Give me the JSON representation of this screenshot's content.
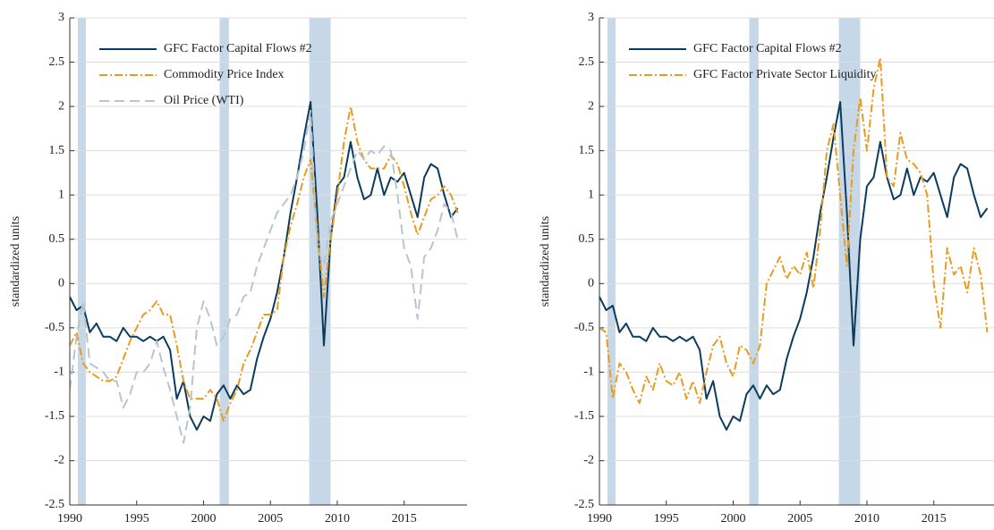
{
  "chart_data": [
    {
      "type": "line",
      "ylabel": "standardized units",
      "x": [
        1990,
        1990.5,
        1991,
        1991.5,
        1992,
        1992.5,
        1993,
        1993.5,
        1994,
        1994.5,
        1995,
        1995.5,
        1996,
        1996.5,
        1997,
        1997.5,
        1998,
        1998.5,
        1999,
        1999.5,
        2000,
        2000.5,
        2001,
        2001.5,
        2002,
        2002.5,
        2003,
        2003.5,
        2004,
        2004.5,
        2005,
        2005.5,
        2006,
        2006.5,
        2007,
        2007.5,
        2008,
        2008.5,
        2009,
        2009.5,
        2010,
        2010.5,
        2011,
        2011.5,
        2012,
        2012.5,
        2013,
        2013.5,
        2014,
        2014.5,
        2015,
        2015.5,
        2016,
        2016.5,
        2017,
        2017.5,
        2018,
        2018.5,
        2019
      ],
      "series": [
        {
          "name": "GFC Factor Capital Flows #2",
          "color": "#0b3c5d",
          "dash": "none",
          "values": [
            -0.15,
            -0.3,
            -0.25,
            -0.55,
            -0.45,
            -0.6,
            -0.6,
            -0.65,
            -0.5,
            -0.6,
            -0.6,
            -0.65,
            -0.6,
            -0.65,
            -0.6,
            -0.75,
            -1.3,
            -1.1,
            -1.5,
            -1.65,
            -1.5,
            -1.55,
            -1.25,
            -1.15,
            -1.3,
            -1.15,
            -1.25,
            -1.2,
            -0.85,
            -0.6,
            -0.4,
            -0.1,
            0.3,
            0.8,
            1.2,
            1.65,
            2.05,
            0.8,
            -0.7,
            0.5,
            1.1,
            1.2,
            1.6,
            1.2,
            0.95,
            1.0,
            1.3,
            1.0,
            1.2,
            1.15,
            1.25,
            1.0,
            0.75,
            1.2,
            1.35,
            1.3,
            1.0,
            0.75,
            0.85
          ]
        },
        {
          "name": "Commodity Price Index",
          "color": "#e89c1f",
          "dash": "9 3 2 3",
          "values": [
            -0.7,
            -0.55,
            -0.9,
            -1.0,
            -1.05,
            -1.1,
            -1.1,
            -1.05,
            -0.85,
            -0.65,
            -0.5,
            -0.35,
            -0.3,
            -0.2,
            -0.35,
            -0.35,
            -0.7,
            -1.1,
            -1.3,
            -1.3,
            -1.3,
            -1.2,
            -1.3,
            -1.55,
            -1.35,
            -1.2,
            -0.9,
            -0.75,
            -0.55,
            -0.35,
            -0.35,
            -0.3,
            0.3,
            0.65,
            0.9,
            1.2,
            1.4,
            0.6,
            -0.15,
            0.5,
            1.0,
            1.6,
            2.0,
            1.6,
            1.4,
            1.3,
            1.3,
            1.3,
            1.45,
            1.35,
            1.1,
            0.8,
            0.55,
            0.75,
            0.95,
            1.0,
            1.1,
            1.0,
            0.8
          ]
        },
        {
          "name": "Oil Price (WTI)",
          "color": "#b8c4d0",
          "dash": "11 6",
          "values": [
            -1.2,
            -0.6,
            -0.2,
            -0.9,
            -0.95,
            -1.0,
            -1.1,
            -1.1,
            -1.4,
            -1.25,
            -1.0,
            -1.0,
            -0.9,
            -0.65,
            -0.95,
            -1.2,
            -1.5,
            -1.8,
            -1.4,
            -0.5,
            -0.2,
            -0.4,
            -0.7,
            -0.6,
            -0.4,
            -0.35,
            -0.15,
            -0.1,
            0.2,
            0.4,
            0.6,
            0.8,
            0.9,
            1.0,
            1.2,
            1.5,
            1.95,
            0.4,
            0.2,
            0.7,
            0.9,
            1.1,
            1.3,
            1.5,
            1.4,
            1.5,
            1.45,
            1.55,
            1.5,
            1.0,
            0.4,
            0.2,
            -0.4,
            0.3,
            0.4,
            0.6,
            0.9,
            0.8,
            0.5
          ]
        }
      ],
      "xlim": [
        1990,
        2019.7
      ],
      "ylim": [
        -2.5,
        3
      ],
      "xticks": [
        1990,
        1995,
        2000,
        2005,
        2010,
        2015
      ],
      "yticks": [
        -2.5,
        -2,
        -1.5,
        -1,
        -0.5,
        0,
        0.5,
        1,
        1.5,
        2,
        2.5,
        3
      ],
      "grid": true,
      "legend": "upper left",
      "recessions": [
        [
          1990.6,
          1991.2
        ],
        [
          2001.2,
          2001.9
        ],
        [
          2007.9,
          2009.5
        ]
      ],
      "recession_color": "#c6d8e8"
    },
    {
      "type": "line",
      "ylabel": "standardized units",
      "x": [
        1990,
        1990.5,
        1991,
        1991.5,
        1992,
        1992.5,
        1993,
        1993.5,
        1994,
        1994.5,
        1995,
        1995.5,
        1996,
        1996.5,
        1997,
        1997.5,
        1998,
        1998.5,
        1999,
        1999.5,
        2000,
        2000.5,
        2001,
        2001.5,
        2002,
        2002.5,
        2003,
        2003.5,
        2004,
        2004.5,
        2005,
        2005.5,
        2006,
        2006.5,
        2007,
        2007.5,
        2008,
        2008.5,
        2009,
        2009.5,
        2010,
        2010.5,
        2011,
        2011.5,
        2012,
        2012.5,
        2013,
        2013.5,
        2014,
        2014.5,
        2015,
        2015.5,
        2016,
        2016.5,
        2017,
        2017.5,
        2018,
        2018.5,
        2019
      ],
      "series": [
        {
          "name": "GFC Factor Capital Flows #2",
          "color": "#0b3c5d",
          "dash": "none",
          "values": [
            -0.15,
            -0.3,
            -0.25,
            -0.55,
            -0.45,
            -0.6,
            -0.6,
            -0.65,
            -0.5,
            -0.6,
            -0.6,
            -0.65,
            -0.6,
            -0.65,
            -0.6,
            -0.75,
            -1.3,
            -1.1,
            -1.5,
            -1.65,
            -1.5,
            -1.55,
            -1.25,
            -1.15,
            -1.3,
            -1.15,
            -1.25,
            -1.2,
            -0.85,
            -0.6,
            -0.4,
            -0.1,
            0.3,
            0.8,
            1.2,
            1.65,
            2.05,
            0.8,
            -0.7,
            0.5,
            1.1,
            1.2,
            1.6,
            1.2,
            0.95,
            1.0,
            1.3,
            1.0,
            1.2,
            1.15,
            1.25,
            1.0,
            0.75,
            1.2,
            1.35,
            1.3,
            1.0,
            0.75,
            0.85
          ]
        },
        {
          "name": "GFC Factor Private Sector Liquidity",
          "color": "#e89c1f",
          "dash": "9 3 2 3",
          "values": [
            -0.5,
            -0.55,
            -1.3,
            -0.9,
            -1.0,
            -1.2,
            -1.35,
            -1.05,
            -1.2,
            -0.9,
            -1.1,
            -1.15,
            -1.0,
            -1.3,
            -1.1,
            -1.35,
            -1.0,
            -0.7,
            -0.6,
            -0.9,
            -1.05,
            -0.7,
            -0.75,
            -0.9,
            -0.7,
            0.0,
            0.15,
            0.3,
            0.05,
            0.2,
            0.1,
            0.35,
            -0.05,
            0.6,
            1.5,
            1.8,
            1.0,
            0.2,
            1.5,
            2.1,
            1.5,
            2.2,
            2.55,
            1.2,
            1.1,
            1.7,
            1.4,
            1.35,
            1.25,
            1.0,
            0.0,
            -0.5,
            0.4,
            0.1,
            0.2,
            -0.1,
            0.4,
            0.1,
            -0.55
          ]
        }
      ],
      "xlim": [
        1990,
        2019.5
      ],
      "ylim": [
        -2.5,
        3
      ],
      "xticks": [
        1990,
        1995,
        2000,
        2005,
        2010,
        2015
      ],
      "yticks": [
        -2.5,
        -2,
        -1.5,
        -1,
        -0.5,
        0,
        0.5,
        1,
        1.5,
        2,
        2.5,
        3
      ],
      "grid": true,
      "legend": "upper left",
      "recessions": [
        [
          1990.6,
          1991.2
        ],
        [
          2001.2,
          2001.9
        ],
        [
          2007.9,
          2009.5
        ]
      ],
      "recession_color": "#c6d8e8"
    }
  ]
}
